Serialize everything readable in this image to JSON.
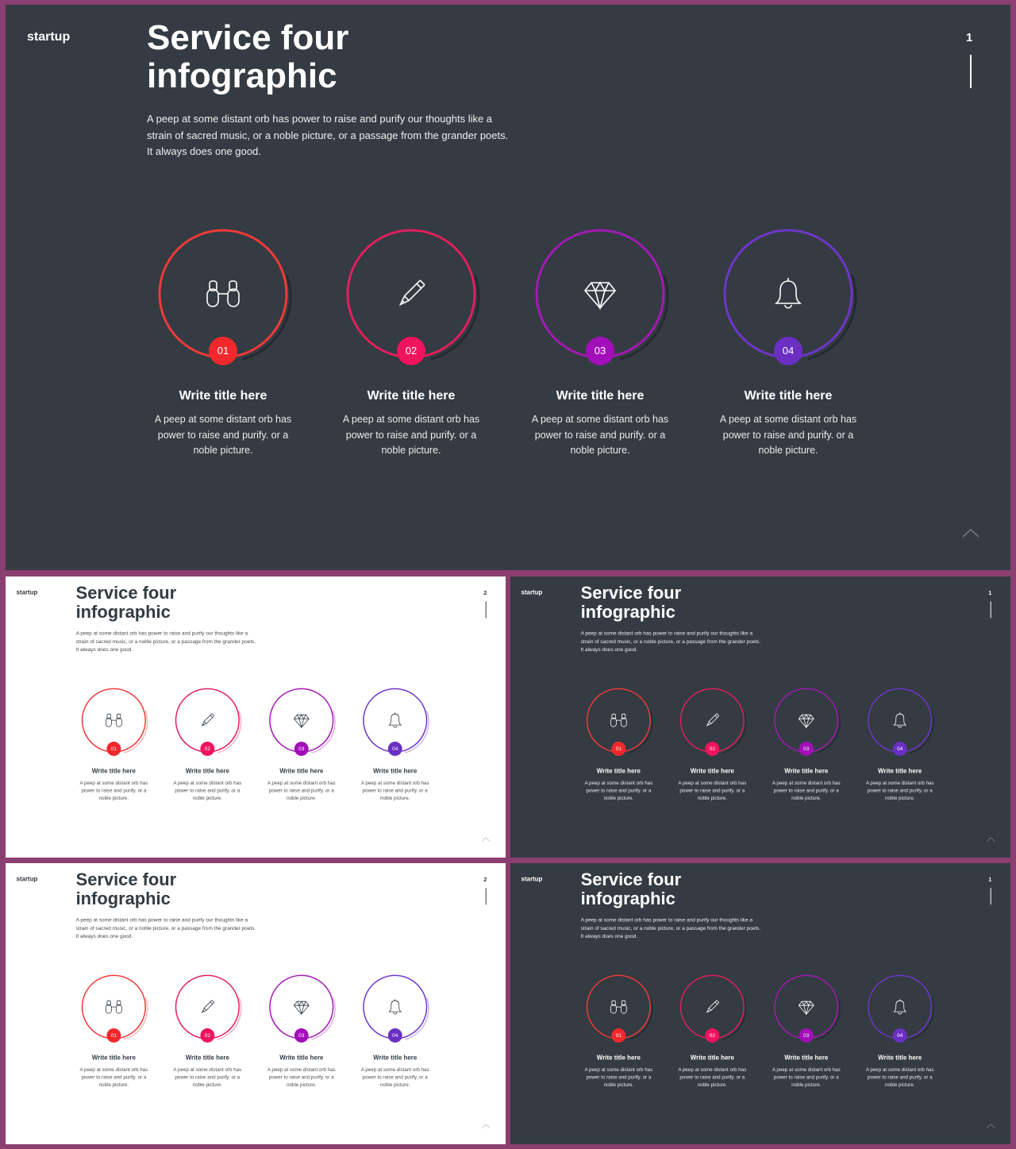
{
  "logo": "startup",
  "title_line1": "Service four",
  "title_line2": "infographic",
  "description": "A peep at some distant orb has power to raise and purify our thoughts like a strain of sacred music, or a noble picture, or a passage from the grander poets. It always does one good.",
  "page_number_dark": "1",
  "page_number_light": "2",
  "colors": {
    "dark_bg": "#343b42",
    "light_bg": "#ffffff",
    "frame": "#8a3f70"
  },
  "items": [
    {
      "number": "01",
      "title": "Write title here",
      "text": "A peep at some distant orb has power to raise and purify. or a noble picture.",
      "icon": "binoculars-icon",
      "color": "#ee3a3a",
      "badge_color": "#f2282c"
    },
    {
      "number": "02",
      "title": "Write title here",
      "text": "A peep at some distant orb has power to raise and purify. or a noble picture.",
      "icon": "pencil-icon",
      "color": "#e01f5e",
      "badge_color": "#f0135e"
    },
    {
      "number": "03",
      "title": "Write title here",
      "text": "A peep at some distant orb has power to raise and purify. or a noble picture.",
      "icon": "diamond-icon",
      "color": "#a21ab3",
      "badge_color": "#a20fb8"
    },
    {
      "number": "04",
      "title": "Write title here",
      "text": "A peep at some distant orb has power to raise and purify. or a noble picture.",
      "icon": "bell-icon",
      "color": "#6f36c8",
      "badge_color": "#6b2fc4"
    }
  ]
}
